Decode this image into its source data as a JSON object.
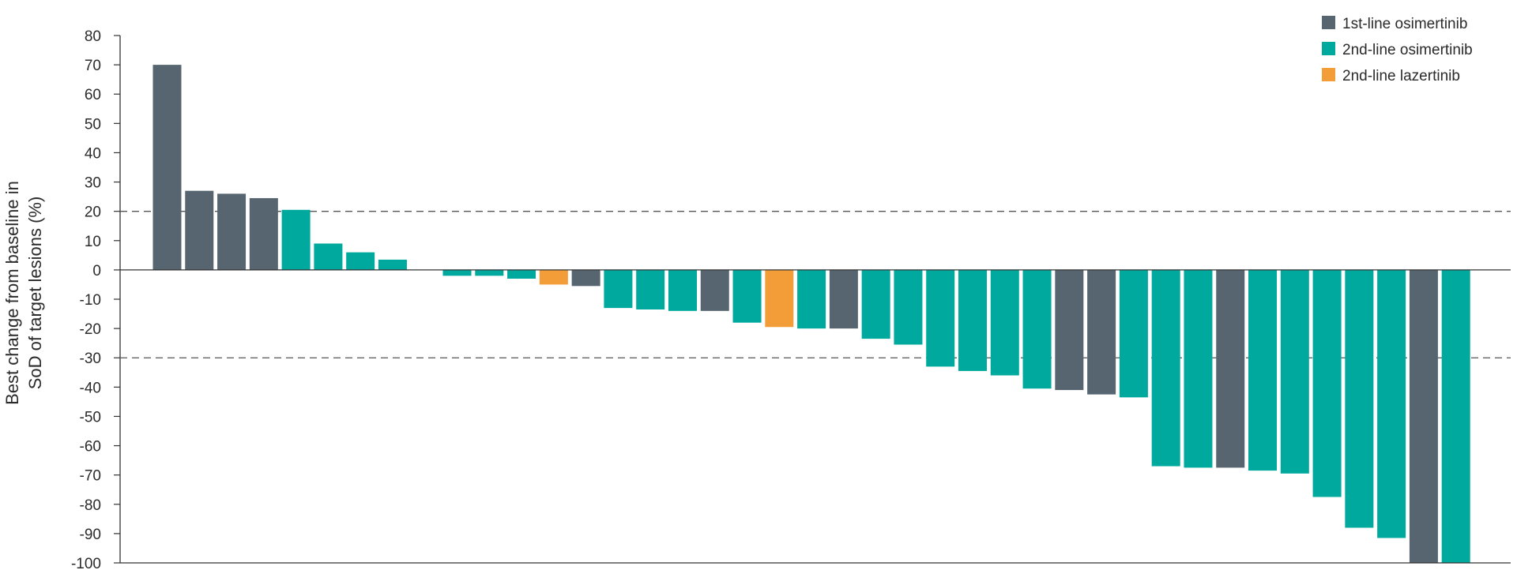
{
  "chart_data": {
    "type": "bar",
    "title": "",
    "xlabel": "",
    "ylabel_lines": [
      "Best change from baseline in",
      "SoD of target lesions (%)"
    ],
    "ylim": [
      -100,
      80
    ],
    "yticks": [
      80,
      70,
      60,
      50,
      40,
      30,
      20,
      10,
      0,
      -10,
      -20,
      -30,
      -40,
      -50,
      -60,
      -70,
      -80,
      -90,
      -100
    ],
    "reference_lines": [
      20,
      -30
    ],
    "legend_position": "top-right",
    "legend": [
      {
        "key": "first_osi",
        "label": "1st-line osimertinib",
        "color": "#56656f"
      },
      {
        "key": "second_osi",
        "label": "2nd-line osimertinib",
        "color": "#00a99d"
      },
      {
        "key": "second_laz",
        "label": "2nd-line lazertinib",
        "color": "#f29d38"
      }
    ],
    "bars": [
      {
        "value": 70,
        "group": "first_osi"
      },
      {
        "value": 27,
        "group": "first_osi"
      },
      {
        "value": 26,
        "group": "first_osi"
      },
      {
        "value": 24.5,
        "group": "first_osi"
      },
      {
        "value": 20.5,
        "group": "second_osi"
      },
      {
        "value": 9,
        "group": "second_osi"
      },
      {
        "value": 6,
        "group": "second_osi"
      },
      {
        "value": 3.5,
        "group": "second_osi"
      },
      {
        "value": 0,
        "group": "second_osi"
      },
      {
        "value": -2,
        "group": "second_osi"
      },
      {
        "value": -2,
        "group": "second_osi"
      },
      {
        "value": -3,
        "group": "second_osi"
      },
      {
        "value": -5,
        "group": "second_laz"
      },
      {
        "value": -5.5,
        "group": "first_osi"
      },
      {
        "value": -13,
        "group": "second_osi"
      },
      {
        "value": -13.5,
        "group": "second_osi"
      },
      {
        "value": -14,
        "group": "second_osi"
      },
      {
        "value": -14,
        "group": "first_osi"
      },
      {
        "value": -18,
        "group": "second_osi"
      },
      {
        "value": -19.5,
        "group": "second_laz"
      },
      {
        "value": -20,
        "group": "second_osi"
      },
      {
        "value": -20,
        "group": "first_osi"
      },
      {
        "value": -23.5,
        "group": "second_osi"
      },
      {
        "value": -25.5,
        "group": "second_osi"
      },
      {
        "value": -33,
        "group": "second_osi"
      },
      {
        "value": -34.5,
        "group": "second_osi"
      },
      {
        "value": -36,
        "group": "second_osi"
      },
      {
        "value": -40.5,
        "group": "second_osi"
      },
      {
        "value": -41,
        "group": "first_osi"
      },
      {
        "value": -42.5,
        "group": "first_osi"
      },
      {
        "value": -43.5,
        "group": "second_osi"
      },
      {
        "value": -67,
        "group": "second_osi"
      },
      {
        "value": -67.5,
        "group": "second_osi"
      },
      {
        "value": -67.5,
        "group": "first_osi"
      },
      {
        "value": -68.5,
        "group": "second_osi"
      },
      {
        "value": -69.5,
        "group": "second_osi"
      },
      {
        "value": -77.5,
        "group": "second_osi"
      },
      {
        "value": -88,
        "group": "second_osi"
      },
      {
        "value": -91.5,
        "group": "second_osi"
      },
      {
        "value": -100,
        "group": "first_osi"
      },
      {
        "value": -100,
        "group": "second_osi"
      }
    ]
  }
}
